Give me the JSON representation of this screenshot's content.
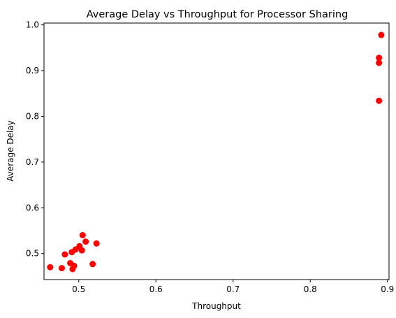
{
  "chart_data": {
    "type": "scatter",
    "title": "Average Delay vs Throughput for Processor Sharing",
    "xlabel": "Throughput",
    "ylabel": "Average Delay",
    "xlim": [
      0.455,
      0.902
    ],
    "ylim": [
      0.443,
      1.004
    ],
    "xticks": [
      0.5,
      0.6,
      0.7,
      0.8,
      0.9
    ],
    "xtick_labels": [
      "0.5",
      "0.6",
      "0.7",
      "0.8",
      "0.9"
    ],
    "yticks": [
      0.5,
      0.6,
      0.7,
      0.8,
      0.9,
      1.0
    ],
    "ytick_labels": [
      "0.5",
      "0.6",
      "0.7",
      "0.8",
      "0.9",
      "1.0"
    ],
    "grid": false,
    "marker_color": "#ff0000",
    "series": [
      {
        "points": [
          [
            0.463,
            0.47
          ],
          [
            0.478,
            0.468
          ],
          [
            0.482,
            0.498
          ],
          [
            0.489,
            0.479
          ],
          [
            0.491,
            0.503
          ],
          [
            0.492,
            0.466
          ],
          [
            0.494,
            0.473
          ],
          [
            0.496,
            0.509
          ],
          [
            0.501,
            0.516
          ],
          [
            0.504,
            0.507
          ],
          [
            0.505,
            0.54
          ],
          [
            0.509,
            0.526
          ],
          [
            0.518,
            0.477
          ],
          [
            0.523,
            0.522
          ],
          [
            0.889,
            0.928
          ],
          [
            0.889,
            0.917
          ],
          [
            0.889,
            0.834
          ],
          [
            0.892,
            0.978
          ]
        ]
      }
    ]
  }
}
